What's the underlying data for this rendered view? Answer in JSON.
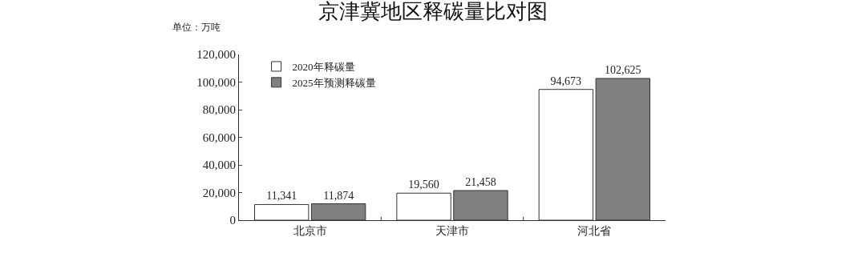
{
  "chart_data": {
    "type": "bar",
    "title": "京津冀地区释碳量比对图",
    "annotations": [
      "单位：万吨"
    ],
    "categories": [
      "北京市",
      "天津市",
      "河北省"
    ],
    "series": [
      {
        "name": "2020年释碳量",
        "color": "#ffffff",
        "values": [
          11341,
          19560,
          94673
        ],
        "value_labels": [
          "11,341",
          "19,560",
          "94,673"
        ]
      },
      {
        "name": "2025年预测释碳量",
        "color": "#808080",
        "values": [
          11874,
          21458,
          102625
        ],
        "value_labels": [
          "11,874",
          "21,458",
          "102,625"
        ]
      }
    ],
    "ylim": [
      0,
      120000
    ],
    "yticks": [
      {
        "value": 0,
        "label": "0"
      },
      {
        "value": 20000,
        "label": "20,000"
      },
      {
        "value": 40000,
        "label": "40,000"
      },
      {
        "value": 60000,
        "label": "60,000"
      },
      {
        "value": 80000,
        "label": "80,000"
      },
      {
        "value": 100000,
        "label": "100,000"
      },
      {
        "value": 120000,
        "label": "120,000"
      }
    ],
    "legend": "top left"
  }
}
